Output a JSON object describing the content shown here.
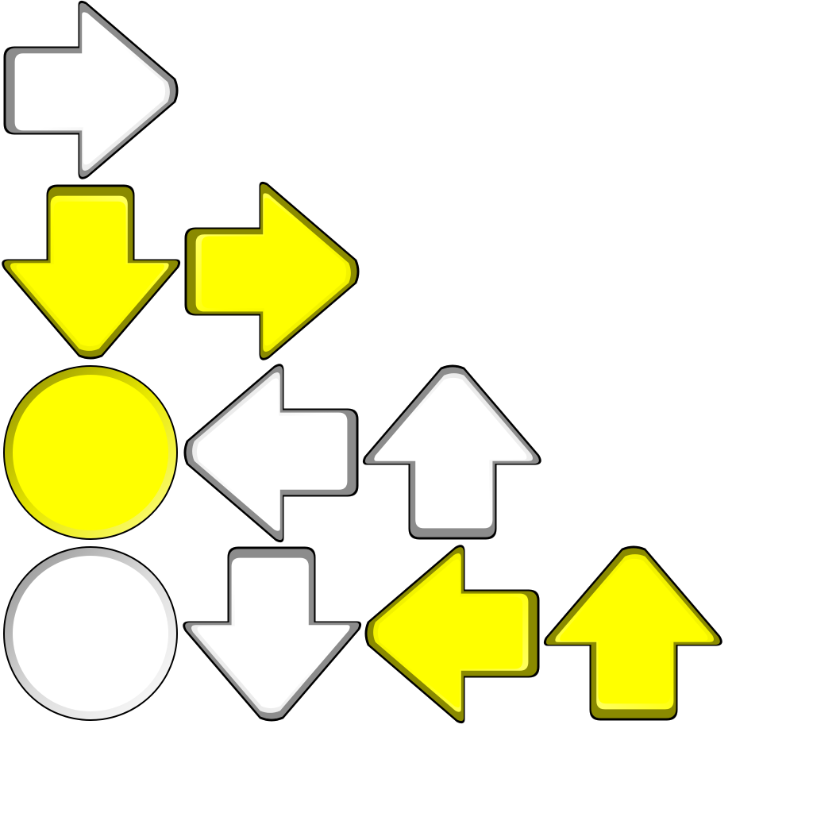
{
  "sprite_sheet": {
    "background": "#ffffff",
    "palette": {
      "yellow": {
        "fill": "#ffff00",
        "light": "#ffff8a",
        "mid": "#e8e800",
        "dark": "#8a8a00",
        "outline": "#000000"
      },
      "white": {
        "fill": "#ffffff",
        "light": "#ffffff",
        "mid": "#dcdcdc",
        "dark": "#8c8c8c",
        "outline": "#000000"
      }
    },
    "sprites": [
      {
        "shape": "arrow",
        "direction": "right",
        "color": "white",
        "row": 0,
        "col": 0
      },
      {
        "shape": "arrow",
        "direction": "down",
        "color": "yellow",
        "row": 1,
        "col": 0
      },
      {
        "shape": "arrow",
        "direction": "right",
        "color": "yellow",
        "row": 1,
        "col": 1
      },
      {
        "shape": "circle",
        "direction": "",
        "color": "yellow",
        "row": 2,
        "col": 0
      },
      {
        "shape": "arrow",
        "direction": "left",
        "color": "white",
        "row": 2,
        "col": 1
      },
      {
        "shape": "arrow",
        "direction": "up",
        "color": "white",
        "row": 2,
        "col": 2
      },
      {
        "shape": "circle",
        "direction": "",
        "color": "white",
        "row": 3,
        "col": 0
      },
      {
        "shape": "arrow",
        "direction": "down",
        "color": "white",
        "row": 3,
        "col": 1
      },
      {
        "shape": "arrow",
        "direction": "left",
        "color": "yellow",
        "row": 3,
        "col": 2
      },
      {
        "shape": "arrow",
        "direction": "up",
        "color": "yellow",
        "row": 3,
        "col": 3
      }
    ]
  }
}
